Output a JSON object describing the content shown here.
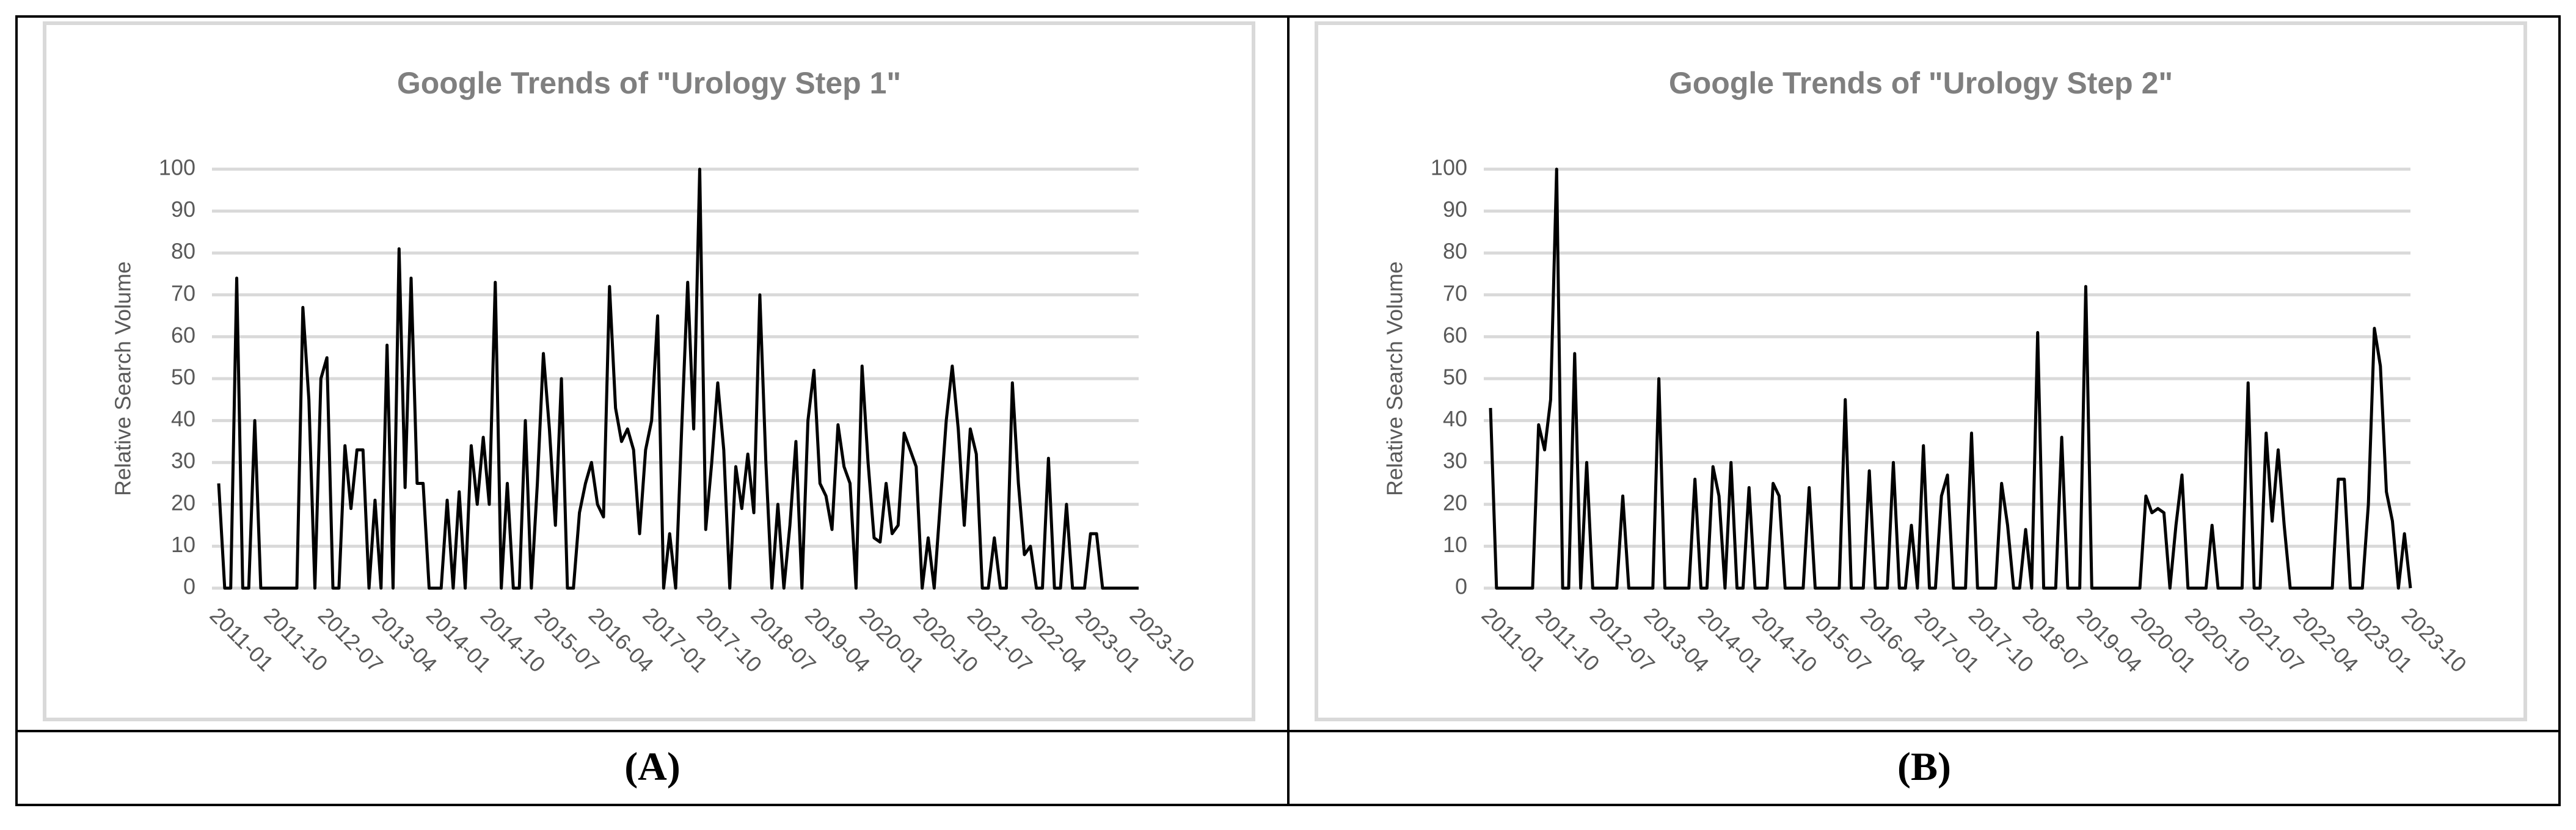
{
  "chart_data": [
    {
      "type": "line",
      "title": "Google Trends of \"Urology Step 1\"",
      "y_label": "Relative Search Volume",
      "categories": [
        "2011-01",
        null,
        null,
        null,
        null,
        null,
        null,
        null,
        null,
        "2011-10",
        null,
        null,
        null,
        null,
        null,
        null,
        null,
        null,
        "2012-07",
        null,
        null,
        null,
        null,
        null,
        null,
        null,
        null,
        "2013-04",
        null,
        null,
        null,
        null,
        null,
        null,
        null,
        null,
        "2014-01",
        null,
        null,
        null,
        null,
        null,
        null,
        null,
        null,
        "2014-10",
        null,
        null,
        null,
        null,
        null,
        null,
        null,
        null,
        "2015-07",
        null,
        null,
        null,
        null,
        null,
        null,
        null,
        null,
        "2016-04",
        null,
        null,
        null,
        null,
        null,
        null,
        null,
        null,
        "2017-01",
        null,
        null,
        null,
        null,
        null,
        null,
        null,
        null,
        "2017-10",
        null,
        null,
        null,
        null,
        null,
        null,
        null,
        null,
        "2018-07",
        null,
        null,
        null,
        null,
        null,
        null,
        null,
        null,
        "2019-04",
        null,
        null,
        null,
        null,
        null,
        null,
        null,
        null,
        "2020-01",
        null,
        null,
        null,
        null,
        null,
        null,
        null,
        null,
        "2020-10",
        null,
        null,
        null,
        null,
        null,
        null,
        null,
        null,
        "2021-07",
        null,
        null,
        null,
        null,
        null,
        null,
        null,
        null,
        "2022-04",
        null,
        null,
        null,
        null,
        null,
        null,
        null,
        null,
        "2023-01",
        null,
        null,
        null,
        null,
        null,
        null,
        null,
        null,
        "2023-10"
      ],
      "series": [
        {
          "name": "Urology Step 1",
          "color": "#000000",
          "values": [
            25,
            0,
            0,
            74,
            0,
            0,
            40,
            0,
            0,
            0,
            0,
            0,
            0,
            0,
            67,
            45,
            0,
            50,
            55,
            0,
            0,
            34,
            19,
            33,
            33,
            0,
            21,
            0,
            58,
            0,
            81,
            24,
            74,
            25,
            25,
            0,
            0,
            0,
            21,
            0,
            23,
            0,
            34,
            20,
            36,
            20,
            73,
            0,
            25,
            0,
            0,
            40,
            0,
            25,
            56,
            38,
            15,
            50,
            0,
            0,
            18,
            25,
            30,
            20,
            17,
            72,
            43,
            35,
            38,
            33,
            13,
            33,
            40,
            65,
            0,
            13,
            0,
            38,
            73,
            38,
            100,
            14,
            30,
            49,
            33,
            0,
            29,
            19,
            32,
            18,
            70,
            30,
            0,
            20,
            0,
            15,
            35,
            0,
            40,
            52,
            25,
            22,
            14,
            39,
            29,
            25,
            0,
            53,
            30,
            12,
            11,
            25,
            13,
            15,
            37,
            33,
            29,
            0,
            12,
            0,
            20,
            40,
            53,
            38,
            15,
            38,
            32,
            0,
            0,
            12,
            0,
            0,
            49,
            25,
            8,
            10,
            0,
            0,
            31,
            0,
            0,
            20,
            0,
            0,
            0,
            13,
            13,
            0,
            0,
            0,
            0,
            0,
            0,
            0
          ]
        }
      ],
      "ylim": [
        0,
        100
      ],
      "yticks": [
        0,
        10,
        20,
        30,
        40,
        50,
        60,
        70,
        80,
        90,
        100
      ],
      "grid": true
    },
    {
      "type": "line",
      "title": "Google Trends of \"Urology Step 2\"",
      "y_label": "Relative Search Volume",
      "categories": [
        "2011-01",
        null,
        null,
        null,
        null,
        null,
        null,
        null,
        null,
        "2011-10",
        null,
        null,
        null,
        null,
        null,
        null,
        null,
        null,
        "2012-07",
        null,
        null,
        null,
        null,
        null,
        null,
        null,
        null,
        "2013-04",
        null,
        null,
        null,
        null,
        null,
        null,
        null,
        null,
        "2014-01",
        null,
        null,
        null,
        null,
        null,
        null,
        null,
        null,
        "2014-10",
        null,
        null,
        null,
        null,
        null,
        null,
        null,
        null,
        "2015-07",
        null,
        null,
        null,
        null,
        null,
        null,
        null,
        null,
        "2016-04",
        null,
        null,
        null,
        null,
        null,
        null,
        null,
        null,
        "2017-01",
        null,
        null,
        null,
        null,
        null,
        null,
        null,
        null,
        "2017-10",
        null,
        null,
        null,
        null,
        null,
        null,
        null,
        null,
        "2018-07",
        null,
        null,
        null,
        null,
        null,
        null,
        null,
        null,
        "2019-04",
        null,
        null,
        null,
        null,
        null,
        null,
        null,
        null,
        "2020-01",
        null,
        null,
        null,
        null,
        null,
        null,
        null,
        null,
        "2020-10",
        null,
        null,
        null,
        null,
        null,
        null,
        null,
        null,
        "2021-07",
        null,
        null,
        null,
        null,
        null,
        null,
        null,
        null,
        "2022-04",
        null,
        null,
        null,
        null,
        null,
        null,
        null,
        null,
        "2023-01",
        null,
        null,
        null,
        null,
        null,
        null,
        null,
        null,
        "2023-10"
      ],
      "series": [
        {
          "name": "Urology Step 2",
          "color": "#000000",
          "values": [
            43,
            0,
            0,
            0,
            0,
            0,
            0,
            0,
            39,
            33,
            45,
            100,
            0,
            0,
            56,
            0,
            30,
            0,
            0,
            0,
            0,
            0,
            22,
            0,
            0,
            0,
            0,
            0,
            50,
            0,
            0,
            0,
            0,
            0,
            26,
            0,
            0,
            29,
            22,
            0,
            30,
            0,
            0,
            24,
            0,
            0,
            0,
            25,
            22,
            0,
            0,
            0,
            0,
            24,
            0,
            0,
            0,
            0,
            0,
            45,
            0,
            0,
            0,
            28,
            0,
            0,
            0,
            30,
            0,
            0,
            15,
            0,
            34,
            0,
            0,
            22,
            27,
            0,
            0,
            0,
            37,
            0,
            0,
            0,
            0,
            25,
            15,
            0,
            0,
            14,
            0,
            61,
            0,
            0,
            0,
            36,
            0,
            0,
            0,
            72,
            0,
            0,
            0,
            0,
            0,
            0,
            0,
            0,
            0,
            22,
            18,
            19,
            18,
            0,
            15,
            27,
            0,
            0,
            0,
            0,
            15,
            0,
            0,
            0,
            0,
            0,
            49,
            0,
            0,
            37,
            16,
            33,
            15,
            0,
            0,
            0,
            0,
            0,
            0,
            0,
            0,
            26,
            26,
            0,
            0,
            0,
            20,
            62,
            53,
            23,
            16,
            0,
            13,
            0
          ]
        }
      ],
      "ylim": [
        0,
        100
      ],
      "yticks": [
        0,
        10,
        20,
        30,
        40,
        50,
        60,
        70,
        80,
        90,
        100
      ],
      "grid": true
    }
  ],
  "captions": [
    "(A)",
    "(B)"
  ]
}
